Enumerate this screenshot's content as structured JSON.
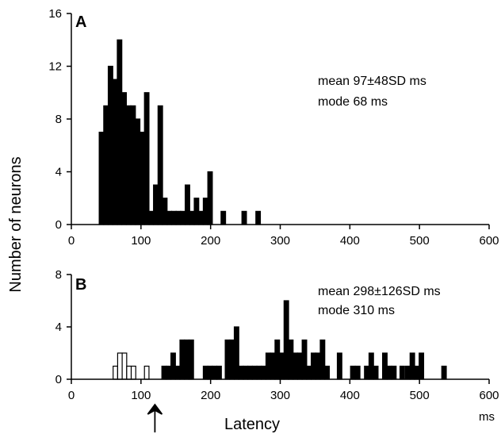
{
  "shared": {
    "ylabel": "Number of neurons",
    "xlabel": "Latency",
    "xunit": "ms",
    "arrow_x": 120,
    "bin_width": 6.5
  },
  "chart_data": [
    {
      "type": "bar",
      "panel": "A",
      "ylim": [
        0,
        16
      ],
      "xlim": [
        0,
        600
      ],
      "yticks": [
        "0",
        "4",
        "8",
        "12",
        "16"
      ],
      "xticks": [
        "0",
        "100",
        "200",
        "300",
        "400",
        "500",
        "600"
      ],
      "annotations": [
        "mean 97±48SD ms",
        "mode 68 ms"
      ],
      "series": [
        {
          "fill": "#000000",
          "x": [
            40,
            46.5,
            53,
            59.5,
            66,
            72.5,
            79,
            85.5,
            92,
            98.5,
            105,
            111.5,
            118,
            124.5,
            131,
            137.5,
            144,
            150.5,
            157,
            163.5,
            170,
            176.5,
            183,
            189.5,
            196,
            215,
            245,
            265
          ],
          "values": [
            7,
            9,
            12,
            11,
            14,
            10,
            9,
            9,
            8,
            7,
            10,
            1,
            3,
            9,
            2,
            1,
            1,
            1,
            1,
            3,
            1,
            2,
            1,
            2,
            4,
            1,
            1,
            1
          ]
        }
      ]
    },
    {
      "type": "bar",
      "panel": "B",
      "ylim": [
        0,
        8
      ],
      "xlim": [
        0,
        600
      ],
      "yticks": [
        "0",
        "4",
        "8"
      ],
      "xticks": [
        "0",
        "100",
        "200",
        "300",
        "400",
        "500",
        "600"
      ],
      "annotations": [
        "mean 298±126SD ms",
        "mode 310 ms"
      ],
      "series": [
        {
          "fill": "#ffffff",
          "x": [
            60,
            66.5,
            73,
            79.5,
            86,
            105
          ],
          "values": [
            1,
            2,
            2,
            1,
            1,
            1
          ]
        },
        {
          "fill": "#000000",
          "x": [
            130,
            136.5,
            143,
            149.5,
            156,
            162.5,
            169,
            189.5,
            196,
            202.5,
            209,
            221,
            227.5,
            234,
            240.5,
            247,
            253.5,
            260,
            266.5,
            273,
            279.5,
            286,
            292.5,
            299,
            305.5,
            312,
            318.5,
            325,
            331.5,
            338,
            344.5,
            351,
            357.5,
            364,
            382,
            401,
            408,
            421,
            427.5,
            434,
            447,
            453.5,
            460,
            472,
            480,
            486.5,
            493,
            499.5,
            532
          ],
          "values": [
            1,
            1,
            2,
            1,
            3,
            3,
            3,
            1,
            1,
            1,
            1,
            3,
            3,
            4,
            1,
            1,
            1,
            1,
            1,
            1,
            2,
            2,
            3,
            2,
            6,
            3,
            2,
            2,
            3,
            1,
            2,
            2,
            3,
            1,
            2,
            1,
            1,
            1,
            2,
            1,
            2,
            1,
            1,
            1,
            1,
            2,
            1,
            2,
            1
          ]
        }
      ]
    }
  ]
}
